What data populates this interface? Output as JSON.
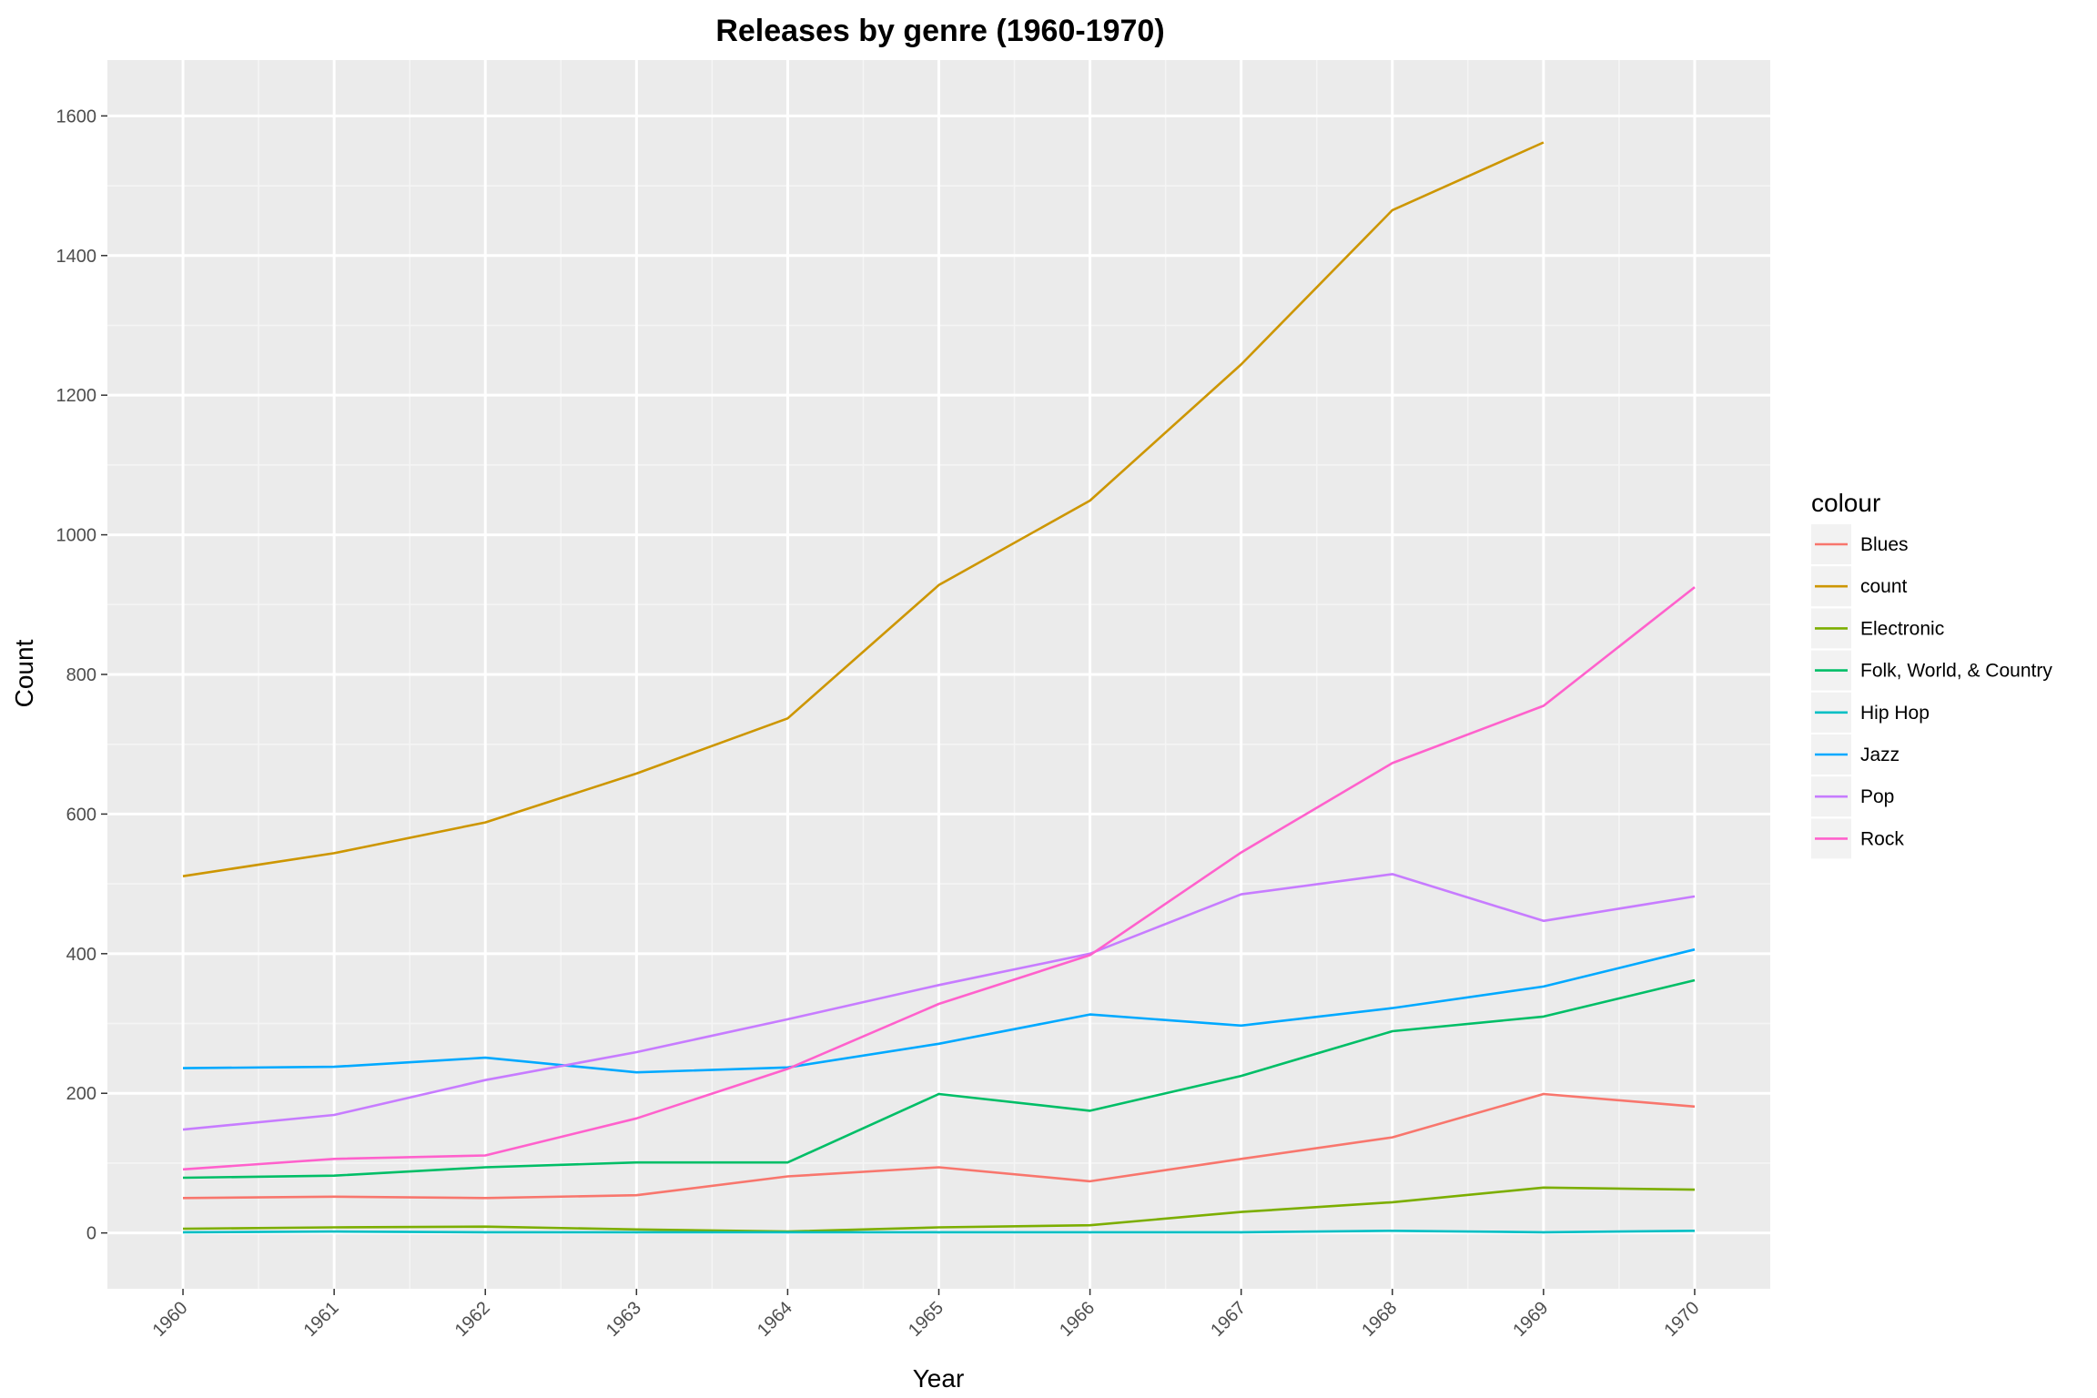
{
  "chart_data": {
    "type": "line",
    "title": "Releases by genre (1960-1970)",
    "xlabel": "Year",
    "ylabel": "Count",
    "x": [
      1960,
      1961,
      1962,
      1963,
      1964,
      1965,
      1966,
      1967,
      1968,
      1969,
      1970
    ],
    "x_tick_labels": [
      "1960",
      "1961",
      "1962",
      "1963",
      "1964",
      "1965",
      "1966",
      "1967",
      "1968",
      "1969",
      "1970"
    ],
    "y_ticks": [
      0,
      200,
      400,
      600,
      800,
      1000,
      1200,
      1400,
      1600
    ],
    "y_tick_labels": [
      "0",
      "200",
      "400",
      "600",
      "800",
      "1000",
      "1200",
      "1400",
      "1600"
    ],
    "ylim": [
      -80,
      1680
    ],
    "xlim": [
      1959.5,
      1970.5
    ],
    "grid": true,
    "legend": {
      "title": "colour",
      "position": "right"
    },
    "series": [
      {
        "name": "Blues",
        "color": "#F8766D",
        "values": [
          50,
          52,
          50,
          54,
          81,
          94,
          74,
          106,
          137,
          199,
          181
        ]
      },
      {
        "name": "count",
        "color": "#CD9600",
        "values": [
          511,
          544,
          588,
          658,
          737,
          928,
          1049,
          1244,
          1465,
          1562,
          null
        ]
      },
      {
        "name": "Electronic",
        "color": "#7CAE00",
        "values": [
          6,
          8,
          9,
          5,
          2,
          8,
          11,
          30,
          44,
          65,
          62
        ]
      },
      {
        "name": "Folk, World, & Country",
        "color": "#00BE67",
        "values": [
          79,
          82,
          94,
          101,
          101,
          199,
          175,
          225,
          289,
          310,
          362
        ]
      },
      {
        "name": "Hip Hop",
        "color": "#00BFC4",
        "values": [
          1,
          2,
          1,
          1,
          1,
          1,
          1,
          1,
          3,
          1,
          3
        ]
      },
      {
        "name": "Jazz",
        "color": "#00A9FF",
        "values": [
          236,
          238,
          251,
          230,
          237,
          271,
          313,
          297,
          322,
          353,
          406
        ]
      },
      {
        "name": "Pop",
        "color": "#C77CFF",
        "values": [
          148,
          169,
          219,
          259,
          306,
          355,
          400,
          485,
          514,
          447,
          482
        ]
      },
      {
        "name": "Rock",
        "color": "#FF61CC",
        "values": [
          91,
          106,
          111,
          164,
          235,
          328,
          398,
          545,
          673,
          755,
          925
        ]
      }
    ]
  }
}
